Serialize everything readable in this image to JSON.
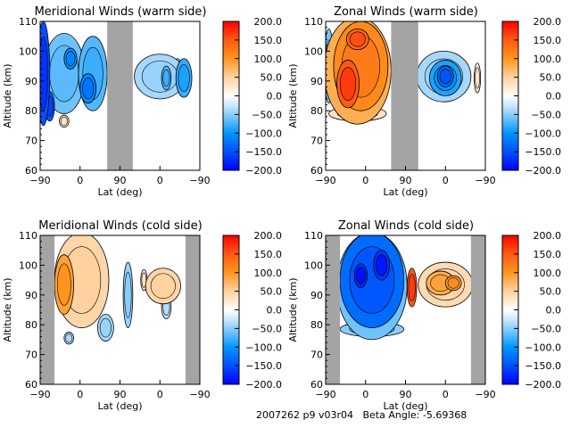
{
  "footer": {
    "text": "2007262 p9 v03r04   Beta Angle: -5.69368"
  },
  "chart_data": [
    {
      "type": "heatmap",
      "id": "mer-warm",
      "title": "Meridional Winds (warm side)",
      "xlabel": "Lat (deg)",
      "ylabel": "Altitude (km)",
      "xticks": [
        "-90",
        "0",
        "90",
        "0",
        "-90"
      ],
      "yticks": [
        60,
        70,
        80,
        90,
        100,
        110
      ],
      "ylim": [
        60,
        110
      ],
      "grey_bands": [
        [
          0.42,
          0.58
        ]
      ],
      "colorbar": {
        "min": -200,
        "max": 200,
        "ticks": [
          "200.0",
          "150.0",
          "100.0",
          "50.0",
          "0.0",
          "-50.0",
          "-100.0",
          "-150.0",
          "-200.0"
        ]
      },
      "blobs": [
        {
          "x": 0.02,
          "y": 0.35,
          "rx": 0.04,
          "ry": 0.35,
          "v": -150
        },
        {
          "x": 0.15,
          "y": 0.35,
          "rx": 0.13,
          "ry": 0.27,
          "v": -60
        },
        {
          "x": 0.33,
          "y": 0.35,
          "rx": 0.09,
          "ry": 0.25,
          "v": -70
        },
        {
          "x": 0.3,
          "y": 0.45,
          "rx": 0.05,
          "ry": 0.1,
          "v": -110
        },
        {
          "x": 0.19,
          "y": 0.25,
          "rx": 0.04,
          "ry": 0.07,
          "v": -100
        },
        {
          "x": 0.06,
          "y": 0.57,
          "rx": 0.03,
          "ry": 0.1,
          "v": -140
        },
        {
          "x": 0.15,
          "y": 0.67,
          "rx": 0.03,
          "ry": 0.04,
          "v": 25
        },
        {
          "x": 0.75,
          "y": 0.37,
          "rx": 0.16,
          "ry": 0.15,
          "v": -40
        },
        {
          "x": 0.79,
          "y": 0.38,
          "rx": 0.03,
          "ry": 0.08,
          "v": -70
        },
        {
          "x": 0.9,
          "y": 0.38,
          "rx": 0.05,
          "ry": 0.13,
          "v": -80
        },
        {
          "x": 0.86,
          "y": 0.3,
          "rx": 0.02,
          "ry": 0.05,
          "v": 25
        }
      ]
    },
    {
      "type": "heatmap",
      "id": "zon-warm",
      "title": "Zonal Winds (warm side)",
      "xlabel": "Lat (deg)",
      "ylabel": "Altitude (km)",
      "xticks": [
        "-90",
        "0",
        "90",
        "0",
        "-90"
      ],
      "yticks": [
        60,
        70,
        80,
        90,
        100,
        110
      ],
      "ylim": [
        60,
        110
      ],
      "grey_bands": [
        [
          0.41,
          0.58
        ]
      ],
      "colorbar": {
        "min": -200,
        "max": 200,
        "ticks": [
          "200.0",
          "150.0",
          "100.0",
          "50.0",
          "0.0",
          "-50.0",
          "-100.0",
          "-150.0",
          "-200.0"
        ]
      },
      "blobs": [
        {
          "x": 0.2,
          "y": 0.33,
          "rx": 0.21,
          "ry": 0.36,
          "v": 80
        },
        {
          "x": 0.22,
          "y": 0.3,
          "rx": 0.17,
          "ry": 0.3,
          "v": 110
        },
        {
          "x": 0.14,
          "y": 0.42,
          "rx": 0.07,
          "ry": 0.16,
          "v": 150
        },
        {
          "x": 0.2,
          "y": 0.12,
          "rx": 0.07,
          "ry": 0.07,
          "v": 140
        },
        {
          "x": 0.2,
          "y": 0.62,
          "rx": 0.18,
          "ry": 0.05,
          "v": 30
        },
        {
          "x": 0.02,
          "y": 0.3,
          "rx": 0.03,
          "ry": 0.25,
          "v": -60
        },
        {
          "x": 0.74,
          "y": 0.37,
          "rx": 0.17,
          "ry": 0.17,
          "v": -40
        },
        {
          "x": 0.75,
          "y": 0.38,
          "rx": 0.1,
          "ry": 0.12,
          "v": -90
        },
        {
          "x": 0.75,
          "y": 0.37,
          "rx": 0.05,
          "ry": 0.07,
          "v": -130
        },
        {
          "x": 0.95,
          "y": 0.38,
          "rx": 0.02,
          "ry": 0.1,
          "v": 25
        }
      ]
    },
    {
      "type": "heatmap",
      "id": "mer-cold",
      "title": "Meridional Winds (cold side)",
      "xlabel": "Lat (deg)",
      "ylabel": "Altitude (km)",
      "xticks": [
        "-90",
        "0",
        "90",
        "0",
        "-90"
      ],
      "yticks": [
        60,
        70,
        80,
        90,
        100,
        110
      ],
      "ylim": [
        60,
        110
      ],
      "grey_bands": [
        [
          0.0,
          0.09
        ],
        [
          0.91,
          1.0
        ]
      ],
      "colorbar": {
        "min": -200,
        "max": 200,
        "ticks": [
          "200.0",
          "150.0",
          "100.0",
          "50.0",
          "0.0",
          "-50.0",
          "-100.0",
          "-150.0",
          "-200.0"
        ]
      },
      "blobs": [
        {
          "x": 0.26,
          "y": 0.3,
          "rx": 0.17,
          "ry": 0.32,
          "v": 45
        },
        {
          "x": 0.15,
          "y": 0.33,
          "rx": 0.06,
          "ry": 0.2,
          "v": 90
        },
        {
          "x": 0.2,
          "y": 0.12,
          "rx": 0.03,
          "ry": 0.06,
          "v": -20
        },
        {
          "x": 0.35,
          "y": 0.35,
          "rx": 0.05,
          "ry": 0.07,
          "v": -40
        },
        {
          "x": 0.41,
          "y": 0.62,
          "rx": 0.05,
          "ry": 0.09,
          "v": -40
        },
        {
          "x": 0.18,
          "y": 0.69,
          "rx": 0.03,
          "ry": 0.04,
          "v": -35
        },
        {
          "x": 0.55,
          "y": 0.4,
          "rx": 0.03,
          "ry": 0.22,
          "v": -45
        },
        {
          "x": 0.77,
          "y": 0.34,
          "rx": 0.11,
          "ry": 0.12,
          "v": 45
        },
        {
          "x": 0.79,
          "y": 0.48,
          "rx": 0.03,
          "ry": 0.08,
          "v": -30
        },
        {
          "x": 0.65,
          "y": 0.3,
          "rx": 0.02,
          "ry": 0.07,
          "v": 25
        }
      ]
    },
    {
      "type": "heatmap",
      "id": "zon-cold",
      "title": "Zonal Winds (cold side)",
      "xlabel": "Lat (deg)",
      "ylabel": "Altitude (km)",
      "xticks": [
        "-90",
        "0",
        "90",
        "0",
        "-90"
      ],
      "yticks": [
        60,
        70,
        80,
        90,
        100,
        110
      ],
      "ylim": [
        60,
        110
      ],
      "grey_bands": [
        [
          0.0,
          0.09
        ],
        [
          0.91,
          1.0
        ]
      ],
      "colorbar": {
        "min": -200,
        "max": 200,
        "ticks": [
          "200.0",
          "150.0",
          "100.0",
          "50.0",
          "0.0",
          "-50.0",
          "-100.0",
          "-150.0",
          "-200.0"
        ]
      },
      "blobs": [
        {
          "x": 0.29,
          "y": 0.34,
          "rx": 0.22,
          "ry": 0.36,
          "v": -60
        },
        {
          "x": 0.29,
          "y": 0.3,
          "rx": 0.2,
          "ry": 0.32,
          "v": -130
        },
        {
          "x": 0.22,
          "y": 0.27,
          "rx": 0.04,
          "ry": 0.08,
          "v": -170
        },
        {
          "x": 0.35,
          "y": 0.2,
          "rx": 0.05,
          "ry": 0.1,
          "v": -165
        },
        {
          "x": 0.29,
          "y": 0.63,
          "rx": 0.2,
          "ry": 0.05,
          "v": -50
        },
        {
          "x": 0.54,
          "y": 0.35,
          "rx": 0.03,
          "ry": 0.13,
          "v": 150
        },
        {
          "x": 0.75,
          "y": 0.33,
          "rx": 0.17,
          "ry": 0.15,
          "v": 40
        },
        {
          "x": 0.72,
          "y": 0.32,
          "rx": 0.09,
          "ry": 0.08,
          "v": 80
        },
        {
          "x": 0.8,
          "y": 0.32,
          "rx": 0.05,
          "ry": 0.05,
          "v": 95
        }
      ]
    }
  ]
}
